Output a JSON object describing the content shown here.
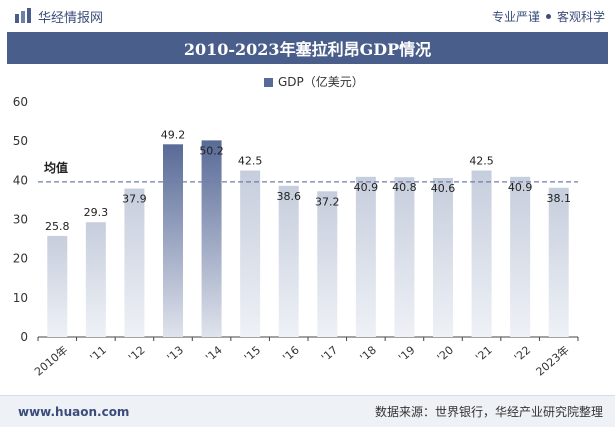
{
  "header": {
    "brand": "华经情报网",
    "tagline_left": "专业严谨",
    "tagline_right": "客观科学"
  },
  "title": "2010-2023年塞拉利昂GDP情况",
  "footer": {
    "url": "www.huaon.com",
    "source": "数据来源：世界银行，华经产业研究院整理"
  },
  "colors": {
    "bar_light": "#c6cddc",
    "bar_dark": "#586a97",
    "average_line": "#6f7fa5",
    "header_band": "#4a5e8c"
  },
  "chart_data": {
    "type": "bar",
    "legend": "GDP（亿美元）",
    "legend_position": "top-center",
    "categories": [
      "2010年",
      "'11",
      "'12",
      "'13",
      "'14",
      "'15",
      "'16",
      "'17",
      "'18",
      "'19",
      "'20",
      "'21",
      "'22",
      "2023年"
    ],
    "values": [
      25.8,
      29.3,
      37.9,
      49.2,
      50.2,
      42.5,
      38.6,
      37.2,
      40.9,
      40.8,
      40.6,
      42.5,
      40.9,
      38.1
    ],
    "ylim": [
      0,
      60
    ],
    "yticks": [
      0,
      10,
      20,
      30,
      40,
      50,
      60
    ],
    "average_label": "均值",
    "average_value": 39.6,
    "grid": false
  }
}
